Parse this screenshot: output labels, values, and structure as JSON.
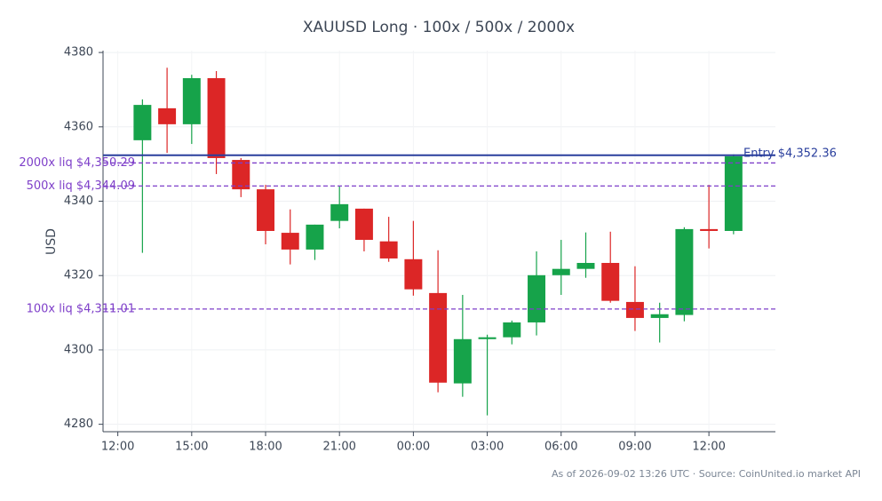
{
  "chart_data": {
    "type": "candlestick",
    "title": "XAUUSD Long · 100x / 500x / 2000x",
    "y_label": "USD",
    "footer": "As of 2026-09-02 13:26 UTC · Source: CoinUnited.io market API",
    "x": [
      13,
      14,
      15,
      16,
      17,
      18,
      19,
      20,
      21,
      22,
      23,
      24,
      25,
      26,
      27,
      28,
      29,
      30,
      31,
      32,
      33,
      34,
      35,
      36,
      37
    ],
    "open": [
      4356.4,
      4365.0,
      4360.7,
      4373.1,
      4351.1,
      4343.2,
      4331.5,
      4327.0,
      4334.7,
      4338.0,
      4329.2,
      4324.4,
      4315.3,
      4291.0,
      4302.9,
      4303.4,
      4307.4,
      4320.1,
      4321.8,
      4323.4,
      4312.9,
      4308.6,
      4309.4,
      4332.5,
      4332.0
    ],
    "high": [
      4367.4,
      4375.9,
      4374.0,
      4375.0,
      4351.6,
      4344.4,
      4337.8,
      4333.7,
      4344.0,
      4338.0,
      4335.8,
      4334.7,
      4326.8,
      4314.8,
      4304.1,
      4307.9,
      4326.5,
      4329.6,
      4331.6,
      4331.8,
      4322.5,
      4312.7,
      4333.0,
      4344.4,
      4352.6
    ],
    "low": [
      4326.1,
      4353.0,
      4355.4,
      4347.3,
      4341.1,
      4328.4,
      4323.0,
      4324.2,
      4332.7,
      4326.5,
      4323.7,
      4314.6,
      4288.6,
      4287.4,
      4282.4,
      4301.5,
      4303.9,
      4314.8,
      4319.4,
      4312.7,
      4305.1,
      4302.0,
      4307.7,
      4327.3,
      4331.1
    ],
    "close": [
      4365.9,
      4360.7,
      4373.1,
      4351.6,
      4343.2,
      4332.0,
      4327.0,
      4333.7,
      4339.2,
      4329.6,
      4324.6,
      4316.3,
      4291.2,
      4302.9,
      4303.4,
      4307.4,
      4320.1,
      4321.8,
      4323.4,
      4313.2,
      4308.6,
      4309.6,
      4332.5,
      4332.0,
      4352.1
    ],
    "up_color": "#16a34a",
    "down_color": "#dc2626",
    "xlim": [
      11.4,
      38.7
    ],
    "xticks": [
      {
        "value": 12,
        "label": "12:00"
      },
      {
        "value": 15,
        "label": "15:00"
      },
      {
        "value": 18,
        "label": "18:00"
      },
      {
        "value": 21,
        "label": "21:00"
      },
      {
        "value": 24,
        "label": "00:00"
      },
      {
        "value": 27,
        "label": "03:00"
      },
      {
        "value": 30,
        "label": "06:00"
      },
      {
        "value": 33,
        "label": "09:00"
      },
      {
        "value": 36,
        "label": "12:00"
      }
    ],
    "ylim": [
      4278,
      4380.5
    ],
    "yticks": [
      4280,
      4300,
      4320,
      4340,
      4360,
      4380
    ],
    "grid": true,
    "levels": [
      {
        "label": "Entry $4,352.36",
        "value": 4352.36,
        "color": "#2a3f9d",
        "style": "solid"
      },
      {
        "label": "2000x liq $4,350.29",
        "value": 4350.29,
        "color": "#7e3fc9",
        "style": "dashed"
      },
      {
        "label": "500x liq $4,344.09",
        "value": 4344.09,
        "color": "#7e3fc9",
        "style": "dashed"
      },
      {
        "label": "100x liq $4,311.01",
        "value": 4311.01,
        "color": "#7e3fc9",
        "style": "dashed"
      }
    ]
  }
}
